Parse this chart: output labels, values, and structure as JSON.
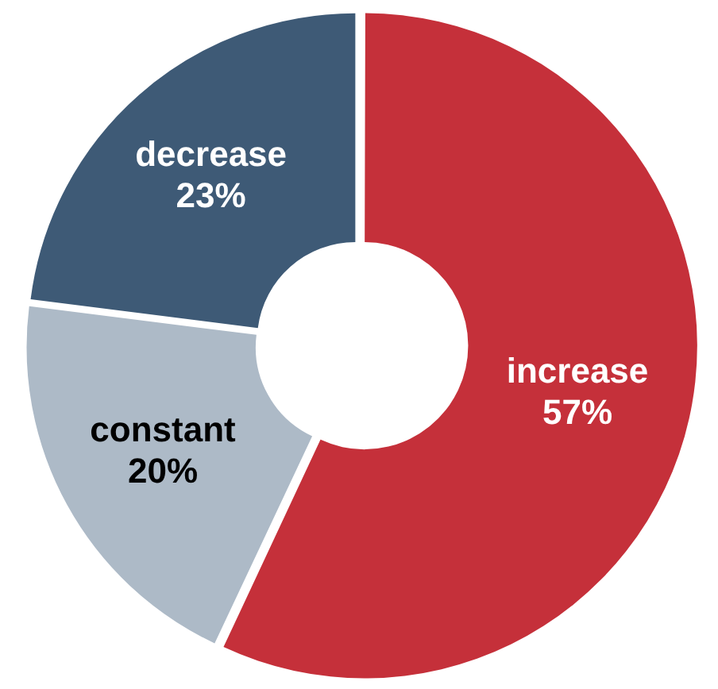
{
  "chart_data": {
    "type": "donut",
    "categories": [
      "increase",
      "constant",
      "decrease"
    ],
    "values": [
      57,
      20,
      23
    ],
    "value_labels": [
      "57%",
      "20%",
      "23%"
    ],
    "colors": [
      "#c5303a",
      "#adbac7",
      "#3e5a76"
    ],
    "legend": false
  }
}
